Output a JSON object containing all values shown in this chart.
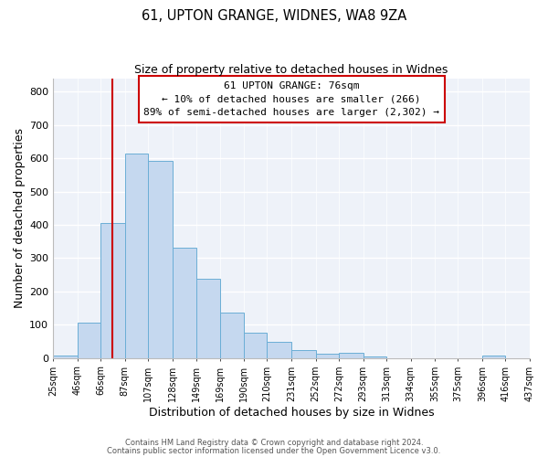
{
  "title": "61, UPTON GRANGE, WIDNES, WA8 9ZA",
  "subtitle": "Size of property relative to detached houses in Widnes",
  "xlabel": "Distribution of detached houses by size in Widnes",
  "ylabel": "Number of detached properties",
  "bar_color": "#c5d8ef",
  "bar_edge_color": "#6baed6",
  "vline_x": 76,
  "vline_color": "#cc0000",
  "annotation_title": "61 UPTON GRANGE: 76sqm",
  "annotation_line1": "← 10% of detached houses are smaller (266)",
  "annotation_line2": "89% of semi-detached houses are larger (2,302) →",
  "annotation_box_color": "#cc0000",
  "bins": [
    25,
    46,
    66,
    87,
    107,
    128,
    149,
    169,
    190,
    210,
    231,
    252,
    272,
    293,
    313,
    334,
    355,
    375,
    396,
    416,
    437
  ],
  "values": [
    7,
    106,
    405,
    614,
    591,
    330,
    238,
    137,
    76,
    50,
    25,
    14,
    16,
    4,
    0,
    0,
    0,
    0,
    8,
    0
  ],
  "ylim": [
    0,
    840
  ],
  "yticks": [
    0,
    100,
    200,
    300,
    400,
    500,
    600,
    700,
    800
  ],
  "footer_line1": "Contains HM Land Registry data © Crown copyright and database right 2024.",
  "footer_line2": "Contains public sector information licensed under the Open Government Licence v3.0.",
  "background_color": "#eef2f9"
}
